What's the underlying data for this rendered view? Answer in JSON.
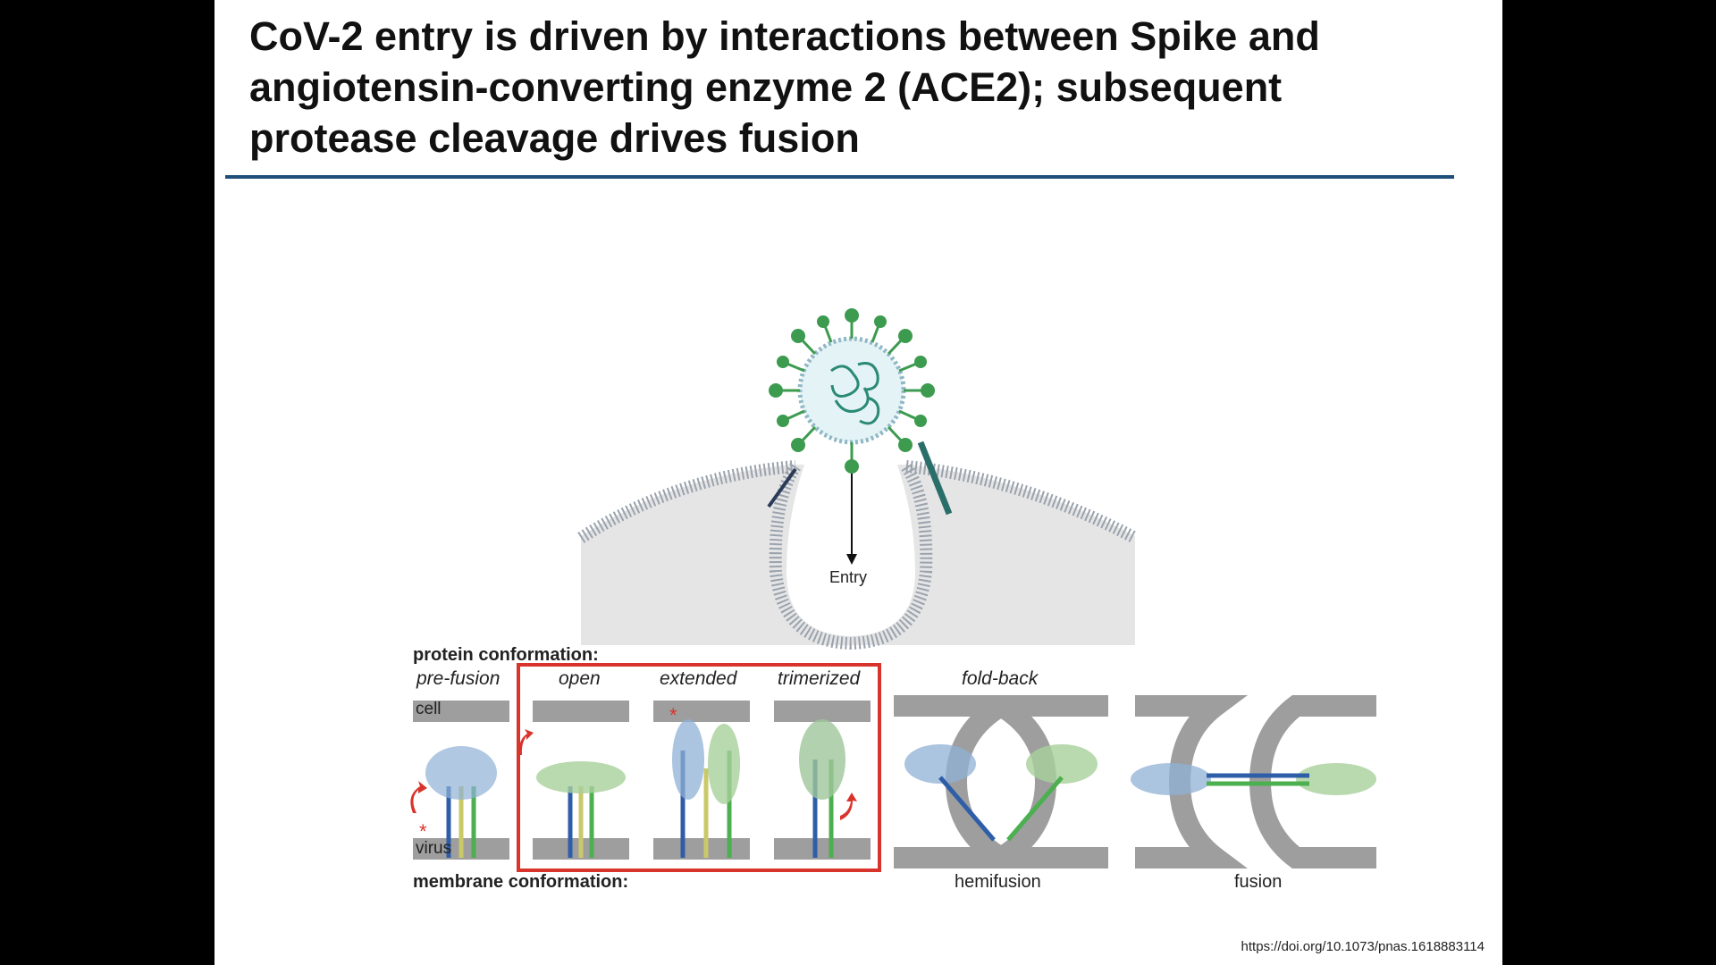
{
  "slide": {
    "title_lines": [
      "CoV-2 entry is driven by interactions between Spike and",
      "angiotensin-converting enzyme 2 (ACE2); subsequent",
      "protease cleavage drives fusion"
    ]
  },
  "entry_diagram": {
    "entry_label": "Entry"
  },
  "conformation": {
    "protein_header": "protein conformation:",
    "membrane_header": "membrane conformation:",
    "stages": [
      "pre-fusion",
      "open",
      "extended",
      "trimerized",
      "fold-back"
    ],
    "cell_label": "cell",
    "virus_label": "virus",
    "membrane_states": [
      "hemifusion",
      "fusion"
    ]
  },
  "citation": {
    "doi": "https://doi.org/10.1073/pnas.1618883114"
  },
  "colors": {
    "title_rule": "#1f4e79",
    "highlight_box": "#d9342b",
    "membrane_gray": "#9e9e9e",
    "virus_green": "#2e8b57",
    "protein_blue": "#2f5ea8",
    "protein_green": "#4caf50"
  }
}
